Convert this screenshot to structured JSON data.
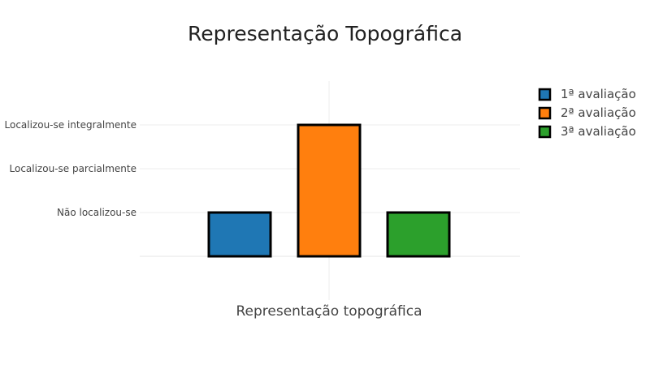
{
  "chart_data": {
    "type": "bar",
    "title": "Representação Topográfica",
    "xlabel": "Representação topográfica",
    "ylabel": "",
    "categories": [
      "Representação topográfica"
    ],
    "y_tick_labels": [
      "Não localizou-se",
      "Localizou-se parcialmente",
      "Localizou-se integralmente"
    ],
    "y_tick_values": [
      1,
      2,
      3
    ],
    "ylim": [
      0,
      4
    ],
    "grid": true,
    "legend_position": "top-right",
    "series": [
      {
        "name": "1ª avaliação",
        "values": [
          1
        ],
        "color": "#1f77b4"
      },
      {
        "name": "2ª avaliação",
        "values": [
          3
        ],
        "color": "#ff7f0e"
      },
      {
        "name": "3ª avaliação",
        "values": [
          1
        ],
        "color": "#2ca02c"
      }
    ]
  }
}
